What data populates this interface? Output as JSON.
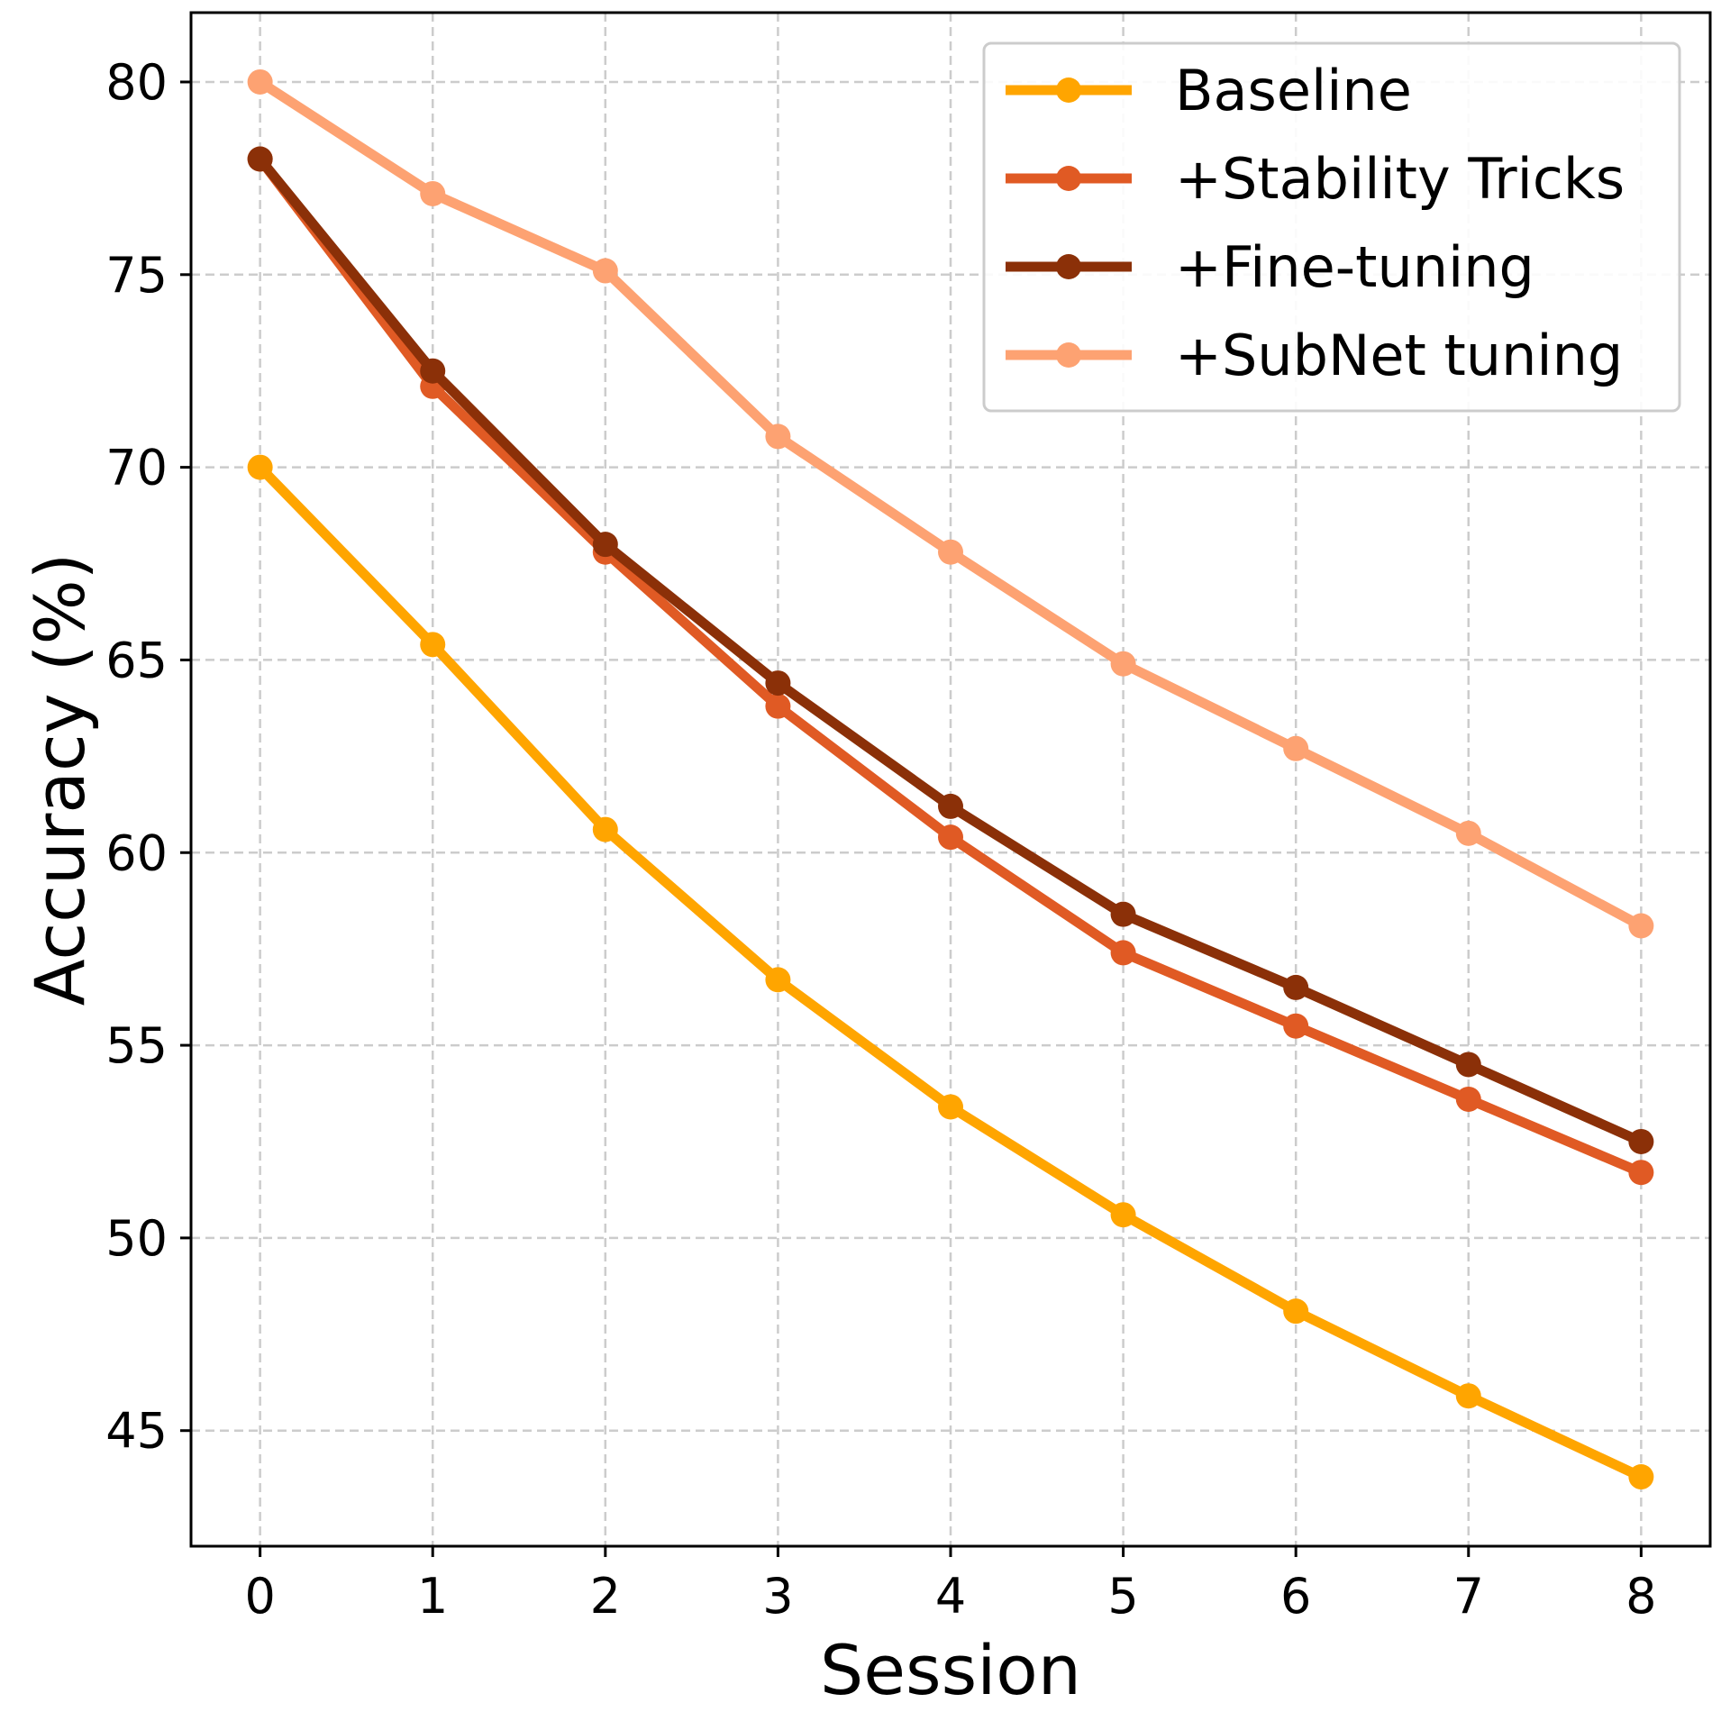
{
  "chart_data": {
    "type": "line",
    "title": "",
    "xlabel": "Session",
    "ylabel": "Accuracy (%)",
    "x": [
      0,
      1,
      2,
      3,
      4,
      5,
      6,
      7,
      8
    ],
    "xticks": [
      "0",
      "1",
      "2",
      "3",
      "4",
      "5",
      "6",
      "7",
      "8"
    ],
    "yticks": [
      "45",
      "50",
      "55",
      "60",
      "65",
      "70",
      "75",
      "80"
    ],
    "xlim": [
      -0.4,
      8.4
    ],
    "ylim": [
      42.0,
      81.8
    ],
    "grid": true,
    "legend_position": "top-right",
    "series": [
      {
        "name": "Baseline",
        "color": "#FFA500",
        "values": [
          70.0,
          65.4,
          60.6,
          56.7,
          53.4,
          50.6,
          48.1,
          45.9,
          43.8
        ]
      },
      {
        "name": "+Stability Tricks",
        "color": "#E05A24",
        "values": [
          78.0,
          72.1,
          67.8,
          63.8,
          60.4,
          57.4,
          55.5,
          53.6,
          51.7
        ]
      },
      {
        "name": "+Fine-tuning",
        "color": "#8B3008",
        "values": [
          78.0,
          72.5,
          68.0,
          64.4,
          61.2,
          58.4,
          56.5,
          54.5,
          52.5
        ]
      },
      {
        "name": "+SubNet tuning",
        "color": "#FDA272",
        "values": [
          80.0,
          77.1,
          75.1,
          70.8,
          67.8,
          64.9,
          62.7,
          60.5,
          58.1
        ]
      }
    ]
  }
}
